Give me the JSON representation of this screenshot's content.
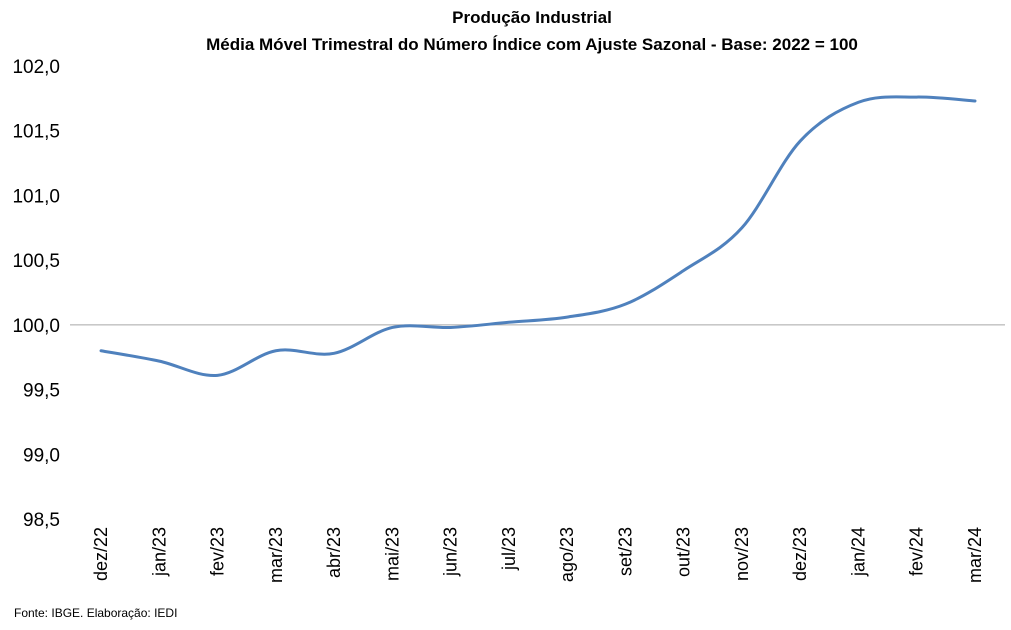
{
  "chart_data": {
    "type": "line",
    "title": "Produção  Industrial",
    "subtitle": "Média Móvel Trimestral  do Número Índice com Ajuste Sazonal  - Base: 2022 = 100",
    "xlabel": "",
    "ylabel": "",
    "categories": [
      "dez/22",
      "jan/23",
      "fev/23",
      "mar/23",
      "abr/23",
      "mai/23",
      "jun/23",
      "jul/23",
      "ago/23",
      "set/23",
      "out/23",
      "nov/23",
      "dez/23",
      "jan/24",
      "fev/24",
      "mar/24"
    ],
    "series": [
      {
        "values": [
          99.8,
          99.72,
          99.61,
          99.8,
          99.78,
          99.98,
          99.98,
          100.02,
          100.06,
          100.16,
          100.42,
          100.75,
          101.42,
          101.72,
          101.76,
          101.73
        ],
        "color": "#4f81bd"
      }
    ],
    "ylim": [
      98.5,
      102.0
    ],
    "yticks": [
      98.5,
      99.0,
      99.5,
      100.0,
      100.5,
      101.0,
      101.5,
      102.0
    ],
    "ytick_labels": [
      "98,5",
      "99,0",
      "99,5",
      "100,0",
      "100,5",
      "101,0",
      "101,5",
      "102,0"
    ],
    "reference_line": 100.0,
    "grid": false,
    "legend": "none",
    "axis_color": "#a6a6a6"
  },
  "source": "Fonte: IBGE. Elaboração: IEDI"
}
